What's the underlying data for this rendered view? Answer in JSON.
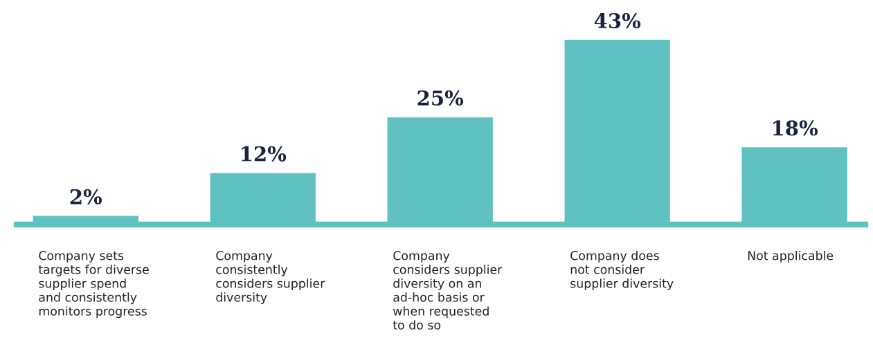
{
  "chart_data": {
    "type": "bar",
    "categories": [
      "Company sets\ntargets for diverse\nsupplier spend\nand consistently\nmonitors progress",
      "Company\nconsistently\nconsiders supplier\ndiversity",
      "Company\nconsiders supplier\ndiversity on an\nad-hoc basis or\nwhen requested\nto do so",
      "Company does\nnot consider\nsupplier diversity",
      "Not applicable"
    ],
    "values": [
      2,
      12,
      25,
      43,
      18
    ],
    "value_labels": [
      "2%",
      "12%",
      "25%",
      "43%",
      "18%"
    ],
    "color": "#5fc1c1",
    "tick_labels": "x"
  }
}
